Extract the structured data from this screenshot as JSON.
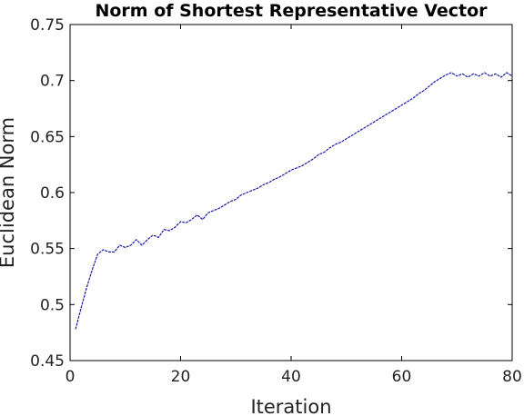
{
  "chart_data": {
    "type": "line",
    "title": "Norm of Shortest Representative Vector",
    "xlabel": "Iteration",
    "ylabel": "Euclidean Norm",
    "xlim": [
      0,
      80
    ],
    "ylim": [
      0.45,
      0.75
    ],
    "xticks": [
      "0",
      "20",
      "40",
      "60",
      "80"
    ],
    "yticks": [
      "0.45",
      "0.5",
      "0.55",
      "0.6",
      "0.65",
      "0.7",
      "0.75"
    ],
    "grid": false,
    "colors": {
      "line": "#1a1aa6",
      "axis": "#000000"
    },
    "series": [
      {
        "x": [
          1,
          2,
          3,
          4,
          5,
          6,
          7,
          8,
          9,
          10,
          11,
          12,
          13,
          14,
          15,
          16,
          17,
          18,
          19,
          20,
          21,
          22,
          23,
          24,
          25,
          26,
          27,
          28,
          29,
          30,
          31,
          32,
          33,
          34,
          35,
          36,
          37,
          38,
          39,
          40,
          41,
          42,
          43,
          44,
          45,
          46,
          47,
          48,
          49,
          50,
          51,
          52,
          53,
          54,
          55,
          56,
          57,
          58,
          59,
          60,
          61,
          62,
          63,
          64,
          65,
          66,
          67,
          68,
          69,
          70,
          71,
          72,
          73,
          74,
          75,
          76,
          77,
          78,
          79,
          80
        ],
        "values": [
          0.478,
          0.497,
          0.515,
          0.531,
          0.545,
          0.549,
          0.547,
          0.547,
          0.553,
          0.551,
          0.553,
          0.558,
          0.553,
          0.558,
          0.562,
          0.56,
          0.567,
          0.566,
          0.569,
          0.574,
          0.573,
          0.576,
          0.58,
          0.576,
          0.582,
          0.584,
          0.586,
          0.589,
          0.592,
          0.594,
          0.598,
          0.6,
          0.602,
          0.604,
          0.607,
          0.609,
          0.612,
          0.614,
          0.617,
          0.62,
          0.622,
          0.624,
          0.627,
          0.63,
          0.634,
          0.636,
          0.64,
          0.643,
          0.645,
          0.648,
          0.651,
          0.654,
          0.657,
          0.66,
          0.663,
          0.666,
          0.669,
          0.672,
          0.675,
          0.678,
          0.681,
          0.684,
          0.688,
          0.691,
          0.695,
          0.699,
          0.702,
          0.705,
          0.707,
          0.704,
          0.706,
          0.703,
          0.706,
          0.704,
          0.707,
          0.704,
          0.706,
          0.703,
          0.707,
          0.704
        ]
      }
    ]
  }
}
